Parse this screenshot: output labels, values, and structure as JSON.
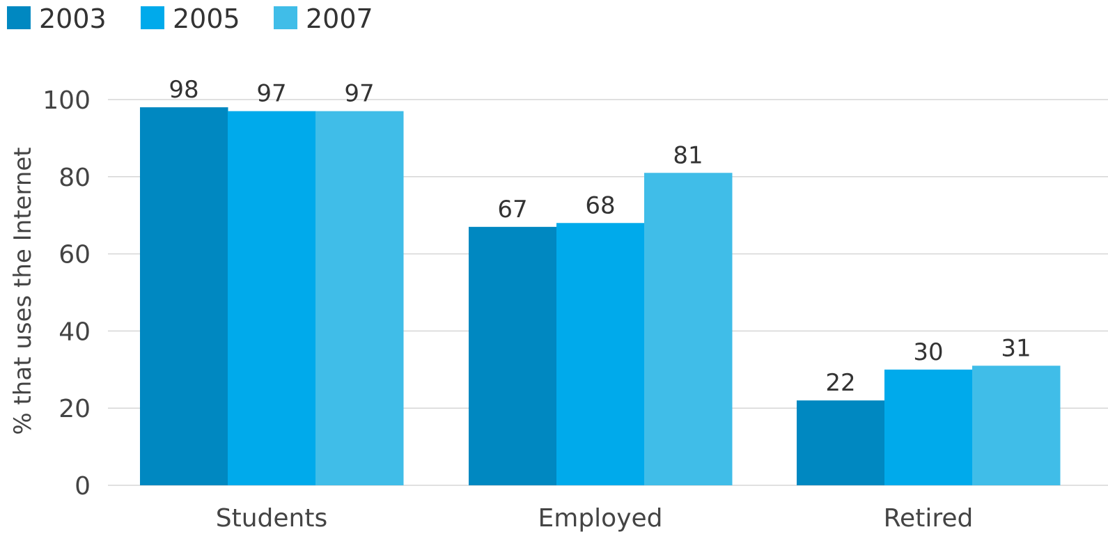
{
  "chart_data": {
    "type": "bar",
    "ylabel": "% that uses the Internet",
    "xlabel": "",
    "ylim": [
      0,
      100
    ],
    "yticks": [
      0,
      20,
      40,
      60,
      80,
      100
    ],
    "grid": true,
    "legend_position": "top-left",
    "categories": [
      "Students",
      "Employed",
      "Retired"
    ],
    "series": [
      {
        "name": "2003",
        "color": "#0088c1",
        "values": [
          98,
          67,
          22
        ]
      },
      {
        "name": "2005",
        "color": "#00aaeb",
        "values": [
          97,
          68,
          30
        ]
      },
      {
        "name": "2007",
        "color": "#40bde8",
        "values": [
          97,
          81,
          31
        ]
      }
    ]
  }
}
